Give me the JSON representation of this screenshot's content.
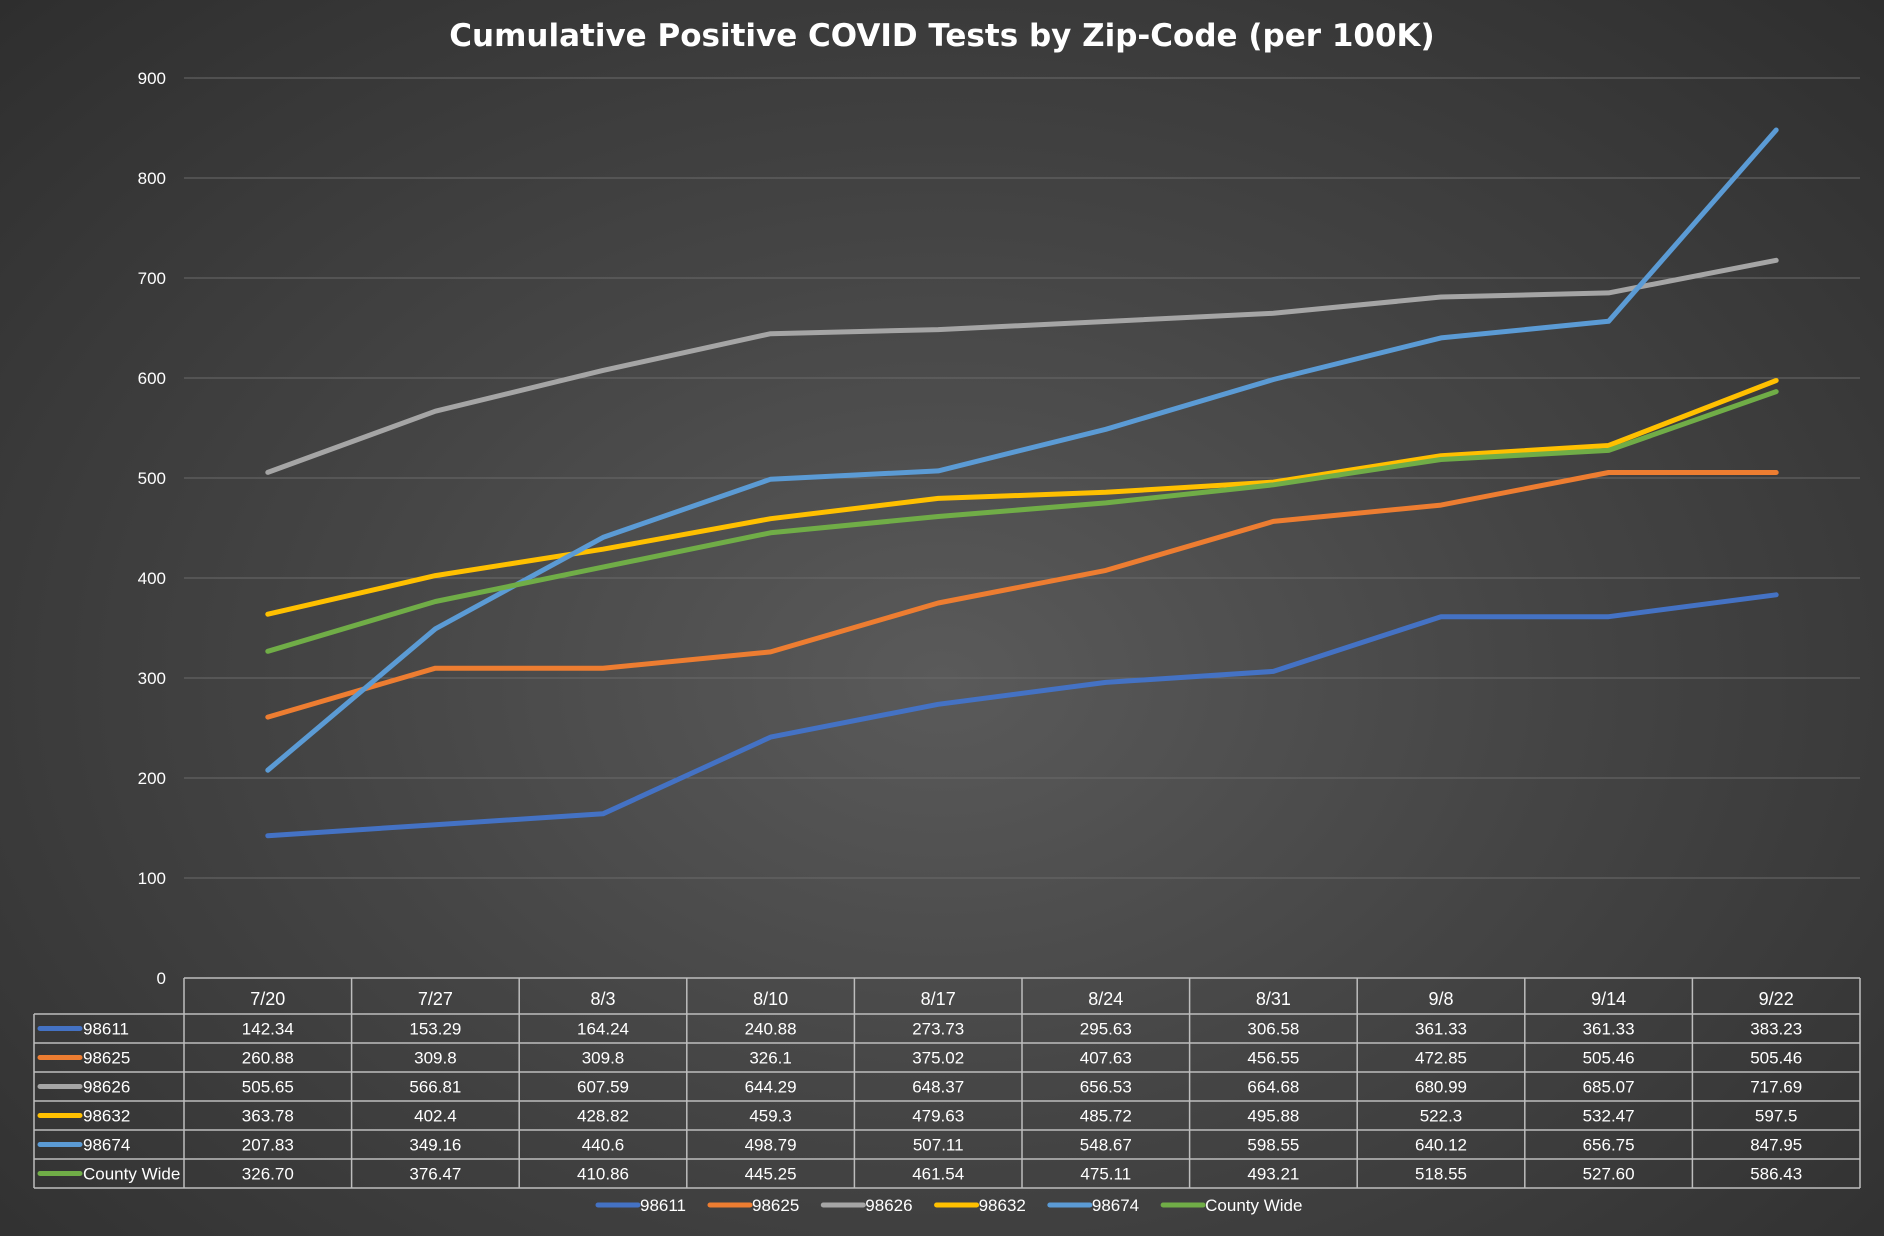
{
  "chart_data": {
    "type": "line",
    "title": "Cumulative Positive COVID Tests by Zip-Code (per 100K)",
    "xlabel": "",
    "ylabel": "",
    "ylim": [
      0,
      900
    ],
    "yticks": [
      0,
      100,
      200,
      300,
      400,
      500,
      600,
      700,
      800,
      900
    ],
    "grid": true,
    "legend": "bottom",
    "data_table": true,
    "categories": [
      "7/20",
      "7/27",
      "8/3",
      "8/10",
      "8/17",
      "8/24",
      "8/31",
      "9/8",
      "9/14",
      "9/22"
    ],
    "series": [
      {
        "name": "98611",
        "color": "#4472C4",
        "values": [
          142.34,
          153.29,
          164.24,
          240.88,
          273.73,
          295.63,
          306.58,
          361.33,
          361.33,
          383.23
        ],
        "labels": [
          "142.34",
          "153.29",
          "164.24",
          "240.88",
          "273.73",
          "295.63",
          "306.58",
          "361.33",
          "361.33",
          "383.23"
        ]
      },
      {
        "name": "98625",
        "color": "#ED7D31",
        "values": [
          260.88,
          309.8,
          309.8,
          326.1,
          375.02,
          407.63,
          456.55,
          472.85,
          505.46,
          505.46
        ],
        "labels": [
          "260.88",
          "309.8",
          "309.8",
          "326.1",
          "375.02",
          "407.63",
          "456.55",
          "472.85",
          "505.46",
          "505.46"
        ]
      },
      {
        "name": "98626",
        "color": "#A5A5A5",
        "values": [
          505.65,
          566.81,
          607.59,
          644.29,
          648.37,
          656.53,
          664.68,
          680.99,
          685.07,
          717.69
        ],
        "labels": [
          "505.65",
          "566.81",
          "607.59",
          "644.29",
          "648.37",
          "656.53",
          "664.68",
          "680.99",
          "685.07",
          "717.69"
        ]
      },
      {
        "name": "98632",
        "color": "#FFC000",
        "values": [
          363.78,
          402.4,
          428.82,
          459.3,
          479.63,
          485.72,
          495.88,
          522.3,
          532.47,
          597.5
        ],
        "labels": [
          "363.78",
          "402.4",
          "428.82",
          "459.3",
          "479.63",
          "485.72",
          "495.88",
          "522.3",
          "532.47",
          "597.5"
        ]
      },
      {
        "name": "98674",
        "color": "#5B9BD5",
        "values": [
          207.83,
          349.16,
          440.6,
          498.79,
          507.11,
          548.67,
          598.55,
          640.12,
          656.75,
          847.95
        ],
        "labels": [
          "207.83",
          "349.16",
          "440.6",
          "498.79",
          "507.11",
          "548.67",
          "598.55",
          "640.12",
          "656.75",
          "847.95"
        ]
      },
      {
        "name": "County Wide",
        "color": "#70AD47",
        "values": [
          326.7,
          376.47,
          410.86,
          445.25,
          461.54,
          475.11,
          493.21,
          518.55,
          527.6,
          586.43
        ],
        "labels": [
          "326.70",
          "376.47",
          "410.86",
          "445.25",
          "461.54",
          "475.11",
          "493.21",
          "518.55",
          "527.60",
          "586.43"
        ]
      }
    ]
  }
}
